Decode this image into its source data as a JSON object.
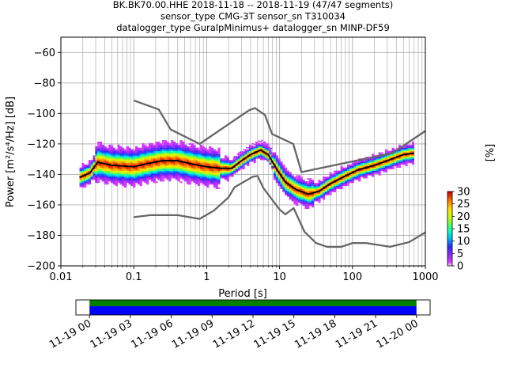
{
  "chart_data": [
    {
      "type": "heatmap",
      "title_lines": [
        "BK.BK70.00.HHE   2018-11-18 -- 2018-11-19  (47/47 segments)",
        "sensor_type CMG-3T sensor_sn T310034",
        "datalogger_type GuralpMinimus+ datalogger_sn MINP-DF59"
      ],
      "xlabel": "Period [s]",
      "ylabel": "Power [m²/s⁴/Hz] [dB]",
      "x_scale": "log",
      "xlim": [
        0.01,
        1000
      ],
      "ylim": [
        -200,
        -50
      ],
      "grid": true,
      "x_ticks": [
        {
          "v": 0.01,
          "label": "0.01"
        },
        {
          "v": 0.1,
          "label": "0.1"
        },
        {
          "v": 1,
          "label": "1"
        },
        {
          "v": 10,
          "label": "10"
        },
        {
          "v": 100,
          "label": "100"
        },
        {
          "v": 1000,
          "label": "1000"
        }
      ],
      "y_ticks": [
        {
          "v": -60,
          "label": "−60"
        },
        {
          "v": -80,
          "label": "−80"
        },
        {
          "v": -100,
          "label": "−100"
        },
        {
          "v": -120,
          "label": "−120"
        },
        {
          "v": -140,
          "label": "−140"
        },
        {
          "v": -160,
          "label": "−160"
        },
        {
          "v": -180,
          "label": "−180"
        },
        {
          "v": -200,
          "label": "−200"
        }
      ],
      "noise_models": [
        {
          "points": [
            [
              0.1,
              -91.5
            ],
            [
              0.22,
              -97.4
            ],
            [
              0.32,
              -110.5
            ],
            [
              0.8,
              -120.0
            ],
            [
              3.8,
              -98.0
            ],
            [
              4.6,
              -96.5
            ],
            [
              6.3,
              -101.0
            ],
            [
              7.9,
              -113.5
            ],
            [
              15.4,
              -120.0
            ],
            [
              20.0,
              -138.5
            ],
            [
              354.8,
              -126.0
            ],
            [
              1000,
              -111.5
            ]
          ]
        },
        {
          "points": [
            [
              0.1,
              -168.0
            ],
            [
              0.17,
              -166.7
            ],
            [
              0.4,
              -166.7
            ],
            [
              0.8,
              -169.2
            ],
            [
              1.26,
              -163.7
            ],
            [
              2.0,
              -155.0
            ],
            [
              2.4,
              -148.5
            ],
            [
              4.3,
              -141.5
            ],
            [
              5.0,
              -141.0
            ],
            [
              6.0,
              -149.0
            ],
            [
              10.0,
              -163.0
            ],
            [
              12.0,
              -166.2
            ],
            [
              15.6,
              -162.1
            ],
            [
              21.9,
              -177.5
            ],
            [
              31.6,
              -185.0
            ],
            [
              45.0,
              -187.5
            ],
            [
              70.0,
              -187.5
            ],
            [
              101.0,
              -185.0
            ],
            [
              154.0,
              -185.0
            ],
            [
              328.0,
              -187.5
            ],
            [
              600.0,
              -184.4
            ],
            [
              1000,
              -178.0
            ]
          ]
        }
      ],
      "mode_line": [
        [
          0.018,
          -142
        ],
        [
          0.025,
          -139
        ],
        [
          0.032,
          -132
        ],
        [
          0.05,
          -134
        ],
        [
          0.1,
          -135
        ],
        [
          0.15,
          -133
        ],
        [
          0.25,
          -131
        ],
        [
          0.4,
          -131
        ],
        [
          0.6,
          -133
        ],
        [
          1.0,
          -135
        ],
        [
          1.6,
          -136
        ],
        [
          2.2,
          -136
        ],
        [
          3.0,
          -131
        ],
        [
          4.0,
          -127
        ],
        [
          5.5,
          -124
        ],
        [
          7.0,
          -127
        ],
        [
          9.0,
          -136
        ],
        [
          12.0,
          -145
        ],
        [
          17.0,
          -150
        ],
        [
          25.0,
          -153
        ],
        [
          35.0,
          -151
        ],
        [
          50.0,
          -146
        ],
        [
          80.0,
          -141
        ],
        [
          120.0,
          -137
        ],
        [
          200.0,
          -134
        ],
        [
          300.0,
          -131
        ],
        [
          500.0,
          -127
        ],
        [
          700.0,
          -126
        ]
      ],
      "colorbar": {
        "label": "[%]",
        "min": 0,
        "max": 30,
        "ticks": [
          0,
          5,
          10,
          15,
          20,
          25,
          30
        ]
      }
    },
    {
      "type": "timeline",
      "tick_labels": [
        "11-19 00",
        "11-19 03",
        "11-19 06",
        "11-19 09",
        "11-19 12",
        "11-19 15",
        "11-19 18",
        "11-19 21",
        "11-20 00"
      ],
      "range_hours": [
        -1,
        25
      ],
      "coverage_hours": [
        0,
        24
      ]
    }
  ]
}
